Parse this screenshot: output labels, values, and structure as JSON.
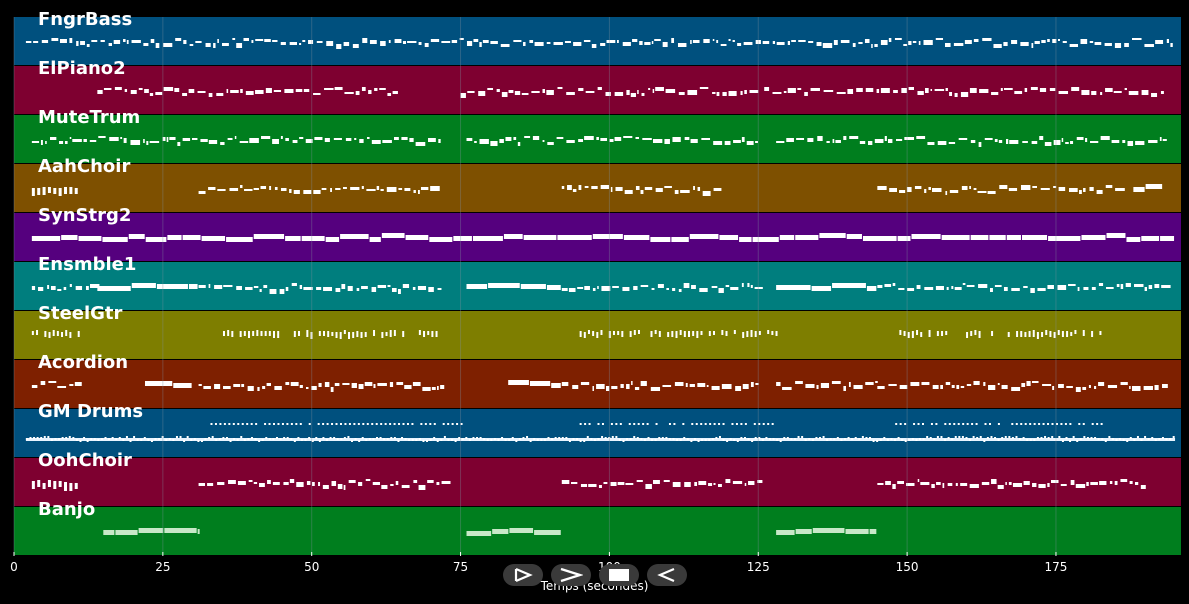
{
  "colors": {
    "background": "#000000",
    "note": "#ffffff",
    "grid": "#7f8f9f"
  },
  "xaxis": {
    "label": "Temps (secondes)",
    "range": [
      0,
      196
    ],
    "ticks": [
      {
        "value": 0,
        "label": "0"
      },
      {
        "value": 25,
        "label": "25"
      },
      {
        "value": 50,
        "label": "50"
      },
      {
        "value": 75,
        "label": "75"
      },
      {
        "value": 100,
        "label": "100"
      },
      {
        "value": 125,
        "label": "125"
      },
      {
        "value": 150,
        "label": "150"
      },
      {
        "value": 175,
        "label": "175"
      }
    ]
  },
  "transport": [
    {
      "name": "play-button",
      "icon": "play-icon"
    },
    {
      "name": "forward-button",
      "icon": "chevron-right-icon"
    },
    {
      "name": "stop-button",
      "icon": "stop-icon"
    },
    {
      "name": "back-button",
      "icon": "back-icon"
    }
  ],
  "tracks": [
    {
      "name": "FngrBass",
      "color": "#00507e",
      "segments": [
        [
          2,
          195,
          "bass"
        ]
      ]
    },
    {
      "name": "ElPiano2",
      "color": "#7e0030",
      "segments": [
        [
          14,
          64,
          "mel"
        ],
        [
          75,
          125,
          "mel"
        ],
        [
          126,
          193,
          "mel"
        ]
      ]
    },
    {
      "name": "MuteTrum",
      "color": "#007e1e",
      "segments": [
        [
          3,
          72,
          "mel"
        ],
        [
          76,
          125,
          "mel"
        ],
        [
          128,
          193,
          "mel"
        ]
      ]
    },
    {
      "name": "AahChoir",
      "color": "#7e5000",
      "segments": [
        [
          3,
          11,
          "blk"
        ],
        [
          31,
          72,
          "mel"
        ],
        [
          92,
          118,
          "mel"
        ],
        [
          145,
          186,
          "mel"
        ],
        [
          188,
          193,
          "pad"
        ]
      ]
    },
    {
      "name": "SynStrg2",
      "color": "#55007e",
      "segments": [
        [
          3,
          195,
          "pad"
        ]
      ]
    },
    {
      "name": "Ensmble1",
      "color": "#007e7e",
      "segments": [
        [
          3,
          14,
          "mel"
        ],
        [
          14,
          31,
          "pad"
        ],
        [
          31,
          72,
          "mel"
        ],
        [
          76,
          92,
          "pad"
        ],
        [
          92,
          125,
          "mel"
        ],
        [
          128,
          145,
          "pad"
        ],
        [
          145,
          193,
          "mel"
        ]
      ]
    },
    {
      "name": "SteelGtr",
      "color": "#7e7e00",
      "segments": [
        [
          3,
          11,
          "spk"
        ],
        [
          33,
          72,
          "spk"
        ],
        [
          95,
          128,
          "spk"
        ],
        [
          148,
          183,
          "spk"
        ]
      ]
    },
    {
      "name": "Acordion",
      "color": "#7e2000",
      "segments": [
        [
          3,
          11,
          "mel"
        ],
        [
          22,
          30,
          "pad"
        ],
        [
          31,
          72,
          "mel"
        ],
        [
          83,
          92,
          "pad"
        ],
        [
          92,
          125,
          "mel"
        ],
        [
          128,
          145,
          "mel"
        ],
        [
          145,
          193,
          "mel"
        ]
      ]
    },
    {
      "name": "GM Drums",
      "color": "#00507e",
      "segments": [
        [
          2,
          195,
          "drum"
        ],
        [
          33,
          76,
          "hat"
        ],
        [
          95,
          128,
          "hat"
        ],
        [
          148,
          183,
          "hat"
        ]
      ]
    },
    {
      "name": "OohChoir",
      "color": "#7e0030",
      "segments": [
        [
          3,
          11,
          "blk"
        ],
        [
          31,
          72,
          "mel"
        ],
        [
          92,
          125,
          "mel"
        ],
        [
          145,
          190,
          "mel"
        ]
      ]
    },
    {
      "name": "Banjo",
      "color": "#007e1e",
      "segments": [
        [
          15,
          31,
          "lite"
        ],
        [
          76,
          92,
          "lite"
        ],
        [
          128,
          145,
          "lite"
        ]
      ]
    }
  ]
}
